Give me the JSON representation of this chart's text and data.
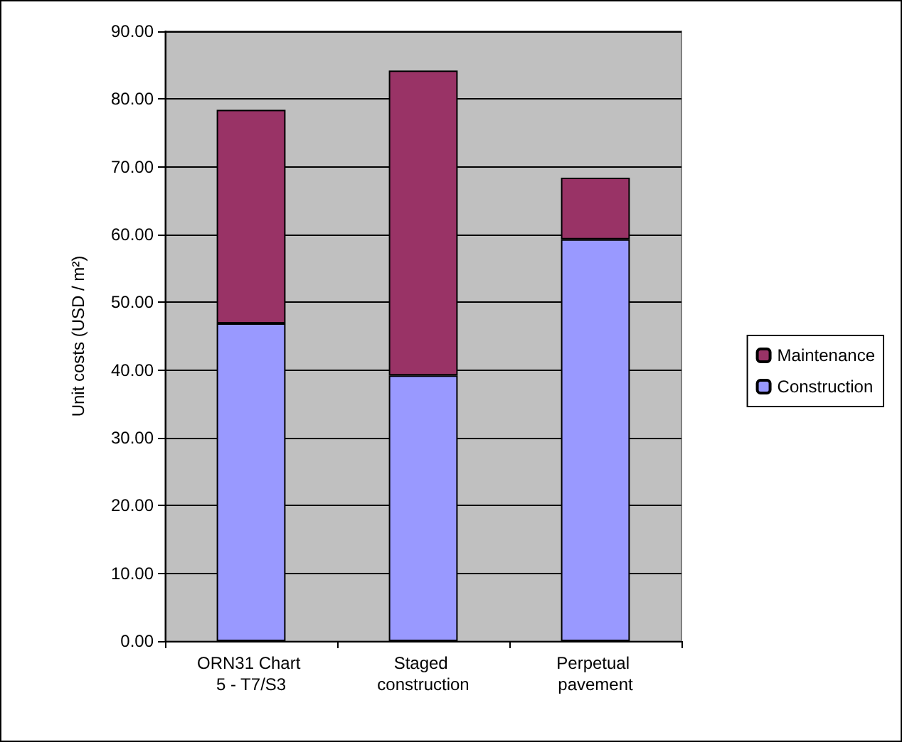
{
  "chart_data": {
    "type": "bar",
    "stacked": true,
    "ylabel": "Unit costs (USD / m²)",
    "categories": [
      "ORN31 Chart 5 - T7/S3",
      "Staged construction",
      "Perpetual pavement"
    ],
    "series": [
      {
        "name": "Construction",
        "color": "#9999ff",
        "values": [
          46.9,
          39.2,
          59.3
        ]
      },
      {
        "name": "Maintenance",
        "color": "#993366",
        "values": [
          31.5,
          45.0,
          9.1
        ]
      }
    ],
    "ylim": [
      0,
      90
    ],
    "yticks": [
      {
        "value": 0,
        "label": "0.00"
      },
      {
        "value": 10,
        "label": "10.00"
      },
      {
        "value": 20,
        "label": "20.00"
      },
      {
        "value": 30,
        "label": "30.00"
      },
      {
        "value": 40,
        "label": "40.00"
      },
      {
        "value": 50,
        "label": "50.00"
      },
      {
        "value": 60,
        "label": "60.00"
      },
      {
        "value": 70,
        "label": "70.00"
      },
      {
        "value": 80,
        "label": "80.00"
      },
      {
        "value": 90,
        "label": "90.00"
      }
    ],
    "grid": "y",
    "legend": "right"
  }
}
